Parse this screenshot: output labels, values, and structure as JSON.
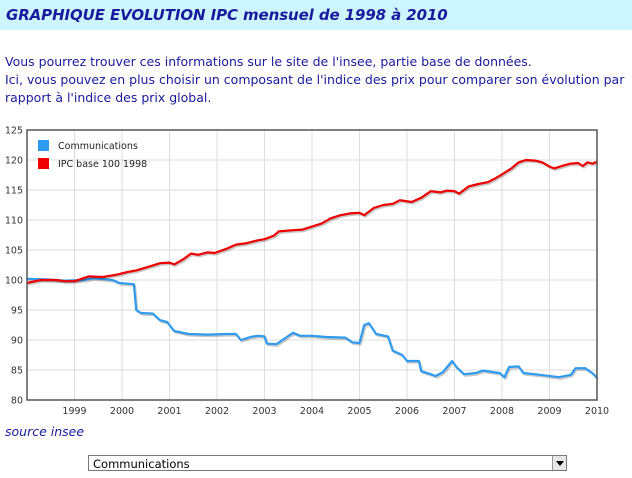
{
  "page": {
    "title": "GRAPHIQUE EVOLUTION IPC mensuel de 1998 à 2010",
    "intro_line1": "Vous pourrez trouver ces informations sur le site de l'insee, partie base de données.",
    "intro_line2": "Ici, vous pouvez en plus choisir un composant de l'indice des prix pour comparer son évolution par rapport à l'indice des prix global.",
    "source": "source insee",
    "select_value": "Communications"
  },
  "colors": {
    "text": "#1a1a9c",
    "title_bg": "#ccf5ff",
    "series_comm": "#2e9bf0",
    "series_ipc": "#ee0000"
  },
  "chart_data": {
    "type": "line",
    "title": "",
    "xlabel": "",
    "ylabel": "",
    "xlim": [
      1998,
      2010
    ],
    "ylim": [
      80,
      125
    ],
    "grid": true,
    "legend_position": "top-left",
    "x_ticks": [
      1999,
      2000,
      2001,
      2002,
      2003,
      2004,
      2005,
      2006,
      2007,
      2008,
      2009,
      2010
    ],
    "y_ticks": [
      80,
      85,
      90,
      95,
      100,
      105,
      110,
      115,
      120,
      125
    ],
    "series": [
      {
        "name": "Communications",
        "color": "#2e9bf0",
        "points": [
          [
            1998.0,
            100.2
          ],
          [
            1998.4,
            100.1
          ],
          [
            1998.8,
            99.9
          ],
          [
            1999.2,
            100.0
          ],
          [
            1999.4,
            100.3
          ],
          [
            1999.8,
            100.0
          ],
          [
            1999.95,
            99.5
          ],
          [
            2000.25,
            99.3
          ],
          [
            2000.3,
            95.0
          ],
          [
            2000.4,
            94.5
          ],
          [
            2000.65,
            94.4
          ],
          [
            2000.8,
            93.3
          ],
          [
            2000.95,
            93.0
          ],
          [
            2001.1,
            91.5
          ],
          [
            2001.4,
            91.0
          ],
          [
            2001.8,
            90.9
          ],
          [
            2002.2,
            91.0
          ],
          [
            2002.4,
            91.0
          ],
          [
            2002.5,
            90.0
          ],
          [
            2002.7,
            90.5
          ],
          [
            2002.85,
            90.7
          ],
          [
            2003.0,
            90.6
          ],
          [
            2003.05,
            89.4
          ],
          [
            2003.25,
            89.3
          ],
          [
            2003.45,
            90.4
          ],
          [
            2003.6,
            91.2
          ],
          [
            2003.75,
            90.7
          ],
          [
            2004.0,
            90.7
          ],
          [
            2004.3,
            90.5
          ],
          [
            2004.7,
            90.4
          ],
          [
            2004.85,
            89.6
          ],
          [
            2005.0,
            89.5
          ],
          [
            2005.1,
            92.5
          ],
          [
            2005.2,
            92.8
          ],
          [
            2005.35,
            91.0
          ],
          [
            2005.6,
            90.6
          ],
          [
            2005.7,
            88.2
          ],
          [
            2005.9,
            87.5
          ],
          [
            2006.0,
            86.5
          ],
          [
            2006.25,
            86.5
          ],
          [
            2006.3,
            84.8
          ],
          [
            2006.5,
            84.3
          ],
          [
            2006.6,
            84.0
          ],
          [
            2006.75,
            84.6
          ],
          [
            2006.95,
            86.5
          ],
          [
            2007.05,
            85.4
          ],
          [
            2007.2,
            84.3
          ],
          [
            2007.45,
            84.5
          ],
          [
            2007.6,
            84.9
          ],
          [
            2007.95,
            84.5
          ],
          [
            2008.05,
            83.8
          ],
          [
            2008.15,
            85.5
          ],
          [
            2008.35,
            85.6
          ],
          [
            2008.45,
            84.5
          ],
          [
            2008.8,
            84.2
          ],
          [
            2009.2,
            83.8
          ],
          [
            2009.45,
            84.2
          ],
          [
            2009.55,
            85.3
          ],
          [
            2009.75,
            85.3
          ],
          [
            2009.9,
            84.5
          ],
          [
            2010.0,
            83.7
          ]
        ]
      },
      {
        "name": "IPC base 100 1998",
        "color": "#ee0000",
        "points": [
          [
            1998.0,
            99.5
          ],
          [
            1998.3,
            100.0
          ],
          [
            1998.6,
            100.0
          ],
          [
            1998.8,
            99.8
          ],
          [
            1999.0,
            99.8
          ],
          [
            1999.3,
            100.6
          ],
          [
            1999.6,
            100.5
          ],
          [
            1999.9,
            100.9
          ],
          [
            2000.1,
            101.3
          ],
          [
            2000.3,
            101.6
          ],
          [
            2000.6,
            102.3
          ],
          [
            2000.8,
            102.8
          ],
          [
            2001.0,
            102.9
          ],
          [
            2001.1,
            102.6
          ],
          [
            2001.3,
            103.5
          ],
          [
            2001.45,
            104.4
          ],
          [
            2001.6,
            104.2
          ],
          [
            2001.8,
            104.6
          ],
          [
            2001.95,
            104.5
          ],
          [
            2002.2,
            105.2
          ],
          [
            2002.4,
            105.9
          ],
          [
            2002.6,
            106.1
          ],
          [
            2002.85,
            106.6
          ],
          [
            2003.0,
            106.8
          ],
          [
            2003.2,
            107.4
          ],
          [
            2003.3,
            108.1
          ],
          [
            2003.6,
            108.3
          ],
          [
            2003.8,
            108.4
          ],
          [
            2004.0,
            108.9
          ],
          [
            2004.2,
            109.4
          ],
          [
            2004.4,
            110.3
          ],
          [
            2004.6,
            110.8
          ],
          [
            2004.8,
            111.1
          ],
          [
            2005.0,
            111.2
          ],
          [
            2005.1,
            110.8
          ],
          [
            2005.3,
            112.0
          ],
          [
            2005.5,
            112.5
          ],
          [
            2005.7,
            112.7
          ],
          [
            2005.85,
            113.3
          ],
          [
            2006.1,
            113.0
          ],
          [
            2006.3,
            113.7
          ],
          [
            2006.5,
            114.8
          ],
          [
            2006.7,
            114.6
          ],
          [
            2006.85,
            114.9
          ],
          [
            2007.0,
            114.8
          ],
          [
            2007.1,
            114.4
          ],
          [
            2007.3,
            115.6
          ],
          [
            2007.5,
            116.0
          ],
          [
            2007.7,
            116.3
          ],
          [
            2007.85,
            116.9
          ],
          [
            2008.0,
            117.6
          ],
          [
            2008.2,
            118.6
          ],
          [
            2008.35,
            119.6
          ],
          [
            2008.5,
            120.0
          ],
          [
            2008.7,
            119.9
          ],
          [
            2008.85,
            119.6
          ],
          [
            2009.0,
            118.9
          ],
          [
            2009.1,
            118.6
          ],
          [
            2009.3,
            119.1
          ],
          [
            2009.45,
            119.4
          ],
          [
            2009.6,
            119.5
          ],
          [
            2009.7,
            119.0
          ],
          [
            2009.8,
            119.6
          ],
          [
            2009.9,
            119.4
          ],
          [
            2010.0,
            119.7
          ]
        ]
      }
    ]
  }
}
